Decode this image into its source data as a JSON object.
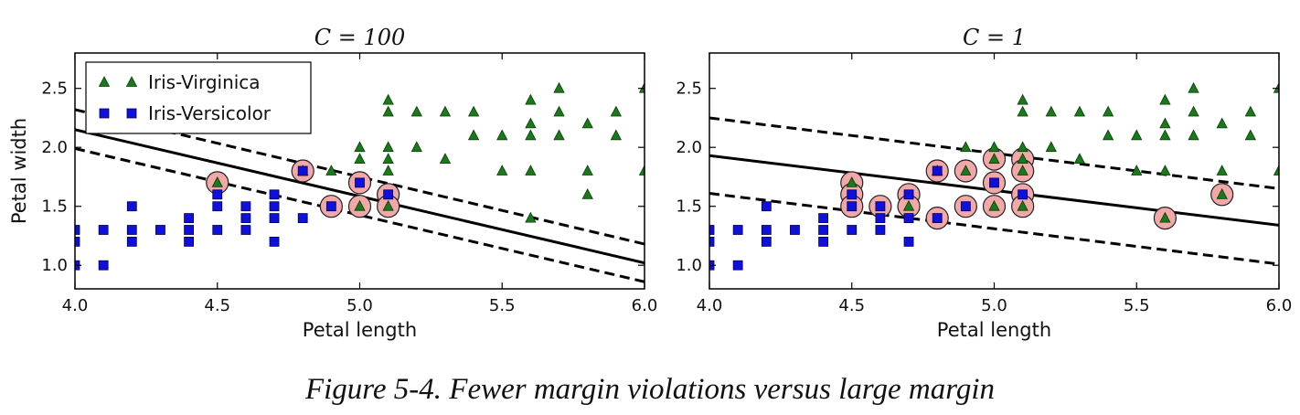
{
  "chart_data": [
    {
      "type": "scatter",
      "title": "C = 100",
      "xlabel": "Petal length",
      "ylabel": "Petal width",
      "xlim": [
        4.0,
        6.0
      ],
      "ylim": [
        0.8,
        2.8
      ],
      "xticks": [
        "4.0",
        "4.5",
        "5.0",
        "5.5",
        "6.0"
      ],
      "yticks": [
        "1.0",
        "1.5",
        "2.0",
        "2.5"
      ],
      "legend": {
        "placement": "top-left",
        "entries": [
          "Iris-Virginica",
          "Iris-Versicolor"
        ]
      },
      "series": [
        {
          "name": "Iris-Virginica",
          "marker": "triangle",
          "color": "#1a7a1a",
          "points": [
            [
              4.5,
              1.7
            ],
            [
              4.8,
              1.8
            ],
            [
              4.9,
              1.8
            ],
            [
              5.0,
              1.5
            ],
            [
              5.0,
              2.0
            ],
            [
              5.0,
              1.9
            ],
            [
              5.1,
              2.4
            ],
            [
              5.1,
              2.3
            ],
            [
              5.1,
              2.0
            ],
            [
              5.1,
              1.9
            ],
            [
              5.1,
              1.8
            ],
            [
              5.1,
              1.5
            ],
            [
              5.2,
              2.3
            ],
            [
              5.2,
              2.0
            ],
            [
              5.3,
              2.3
            ],
            [
              5.3,
              1.9
            ],
            [
              5.4,
              2.3
            ],
            [
              5.4,
              2.1
            ],
            [
              5.5,
              2.1
            ],
            [
              5.5,
              1.8
            ],
            [
              5.6,
              2.4
            ],
            [
              5.6,
              2.2
            ],
            [
              5.6,
              2.1
            ],
            [
              5.6,
              1.8
            ],
            [
              5.6,
              1.4
            ],
            [
              5.7,
              2.5
            ],
            [
              5.7,
              2.3
            ],
            [
              5.7,
              2.1
            ],
            [
              5.8,
              2.2
            ],
            [
              5.8,
              1.8
            ],
            [
              5.8,
              1.6
            ],
            [
              5.9,
              2.3
            ],
            [
              5.9,
              2.1
            ],
            [
              6.0,
              2.5
            ],
            [
              6.0,
              1.8
            ]
          ]
        },
        {
          "name": "Iris-Versicolor",
          "marker": "square",
          "color": "#1010dd",
          "points": [
            [
              4.0,
              1.3
            ],
            [
              4.0,
              1.2
            ],
            [
              4.0,
              1.0
            ],
            [
              4.1,
              1.3
            ],
            [
              4.1,
              1.0
            ],
            [
              4.2,
              1.5
            ],
            [
              4.2,
              1.3
            ],
            [
              4.2,
              1.2
            ],
            [
              4.3,
              1.3
            ],
            [
              4.4,
              1.4
            ],
            [
              4.4,
              1.3
            ],
            [
              4.4,
              1.2
            ],
            [
              4.5,
              1.6
            ],
            [
              4.5,
              1.5
            ],
            [
              4.5,
              1.3
            ],
            [
              4.6,
              1.5
            ],
            [
              4.6,
              1.4
            ],
            [
              4.6,
              1.3
            ],
            [
              4.7,
              1.6
            ],
            [
              4.7,
              1.5
            ],
            [
              4.7,
              1.4
            ],
            [
              4.7,
              1.2
            ],
            [
              4.8,
              1.8
            ],
            [
              4.8,
              1.4
            ],
            [
              4.9,
              1.5
            ],
            [
              5.0,
              1.7
            ],
            [
              5.1,
              1.6
            ]
          ]
        }
      ],
      "support_vectors": [
        [
          4.5,
          1.7
        ],
        [
          4.8,
          1.8
        ],
        [
          4.9,
          1.5
        ],
        [
          5.0,
          1.7
        ],
        [
          5.0,
          1.5
        ],
        [
          5.1,
          1.6
        ],
        [
          5.1,
          1.5
        ]
      ],
      "decision_boundary": {
        "style": "solid",
        "points": [
          [
            4.0,
            2.15
          ],
          [
            6.0,
            1.02
          ]
        ]
      },
      "margins": [
        {
          "style": "dashed",
          "points": [
            [
              4.0,
              2.32
            ],
            [
              6.0,
              1.18
            ]
          ]
        },
        {
          "style": "dashed",
          "points": [
            [
              4.0,
              1.99
            ],
            [
              6.0,
              0.86
            ]
          ]
        }
      ]
    },
    {
      "type": "scatter",
      "title": "C = 1",
      "xlabel": "Petal length",
      "ylabel": "",
      "xlim": [
        4.0,
        6.0
      ],
      "ylim": [
        0.8,
        2.8
      ],
      "xticks": [
        "4.0",
        "4.5",
        "5.0",
        "5.5",
        "6.0"
      ],
      "yticks": [
        "1.0",
        "1.5",
        "2.0",
        "2.5"
      ],
      "series": [
        {
          "name": "Iris-Virginica",
          "marker": "triangle",
          "color": "#1a7a1a",
          "points": [
            [
              4.5,
              1.7
            ],
            [
              4.7,
              1.5
            ],
            [
              4.8,
              1.8
            ],
            [
              4.9,
              1.8
            ],
            [
              4.9,
              2.0
            ],
            [
              5.0,
              1.5
            ],
            [
              5.0,
              2.0
            ],
            [
              5.0,
              1.9
            ],
            [
              5.1,
              2.4
            ],
            [
              5.1,
              2.3
            ],
            [
              5.1,
              2.0
            ],
            [
              5.1,
              1.9
            ],
            [
              5.1,
              1.8
            ],
            [
              5.1,
              1.5
            ],
            [
              5.2,
              2.3
            ],
            [
              5.2,
              2.0
            ],
            [
              5.3,
              2.3
            ],
            [
              5.3,
              1.9
            ],
            [
              5.4,
              2.3
            ],
            [
              5.4,
              2.1
            ],
            [
              5.5,
              2.1
            ],
            [
              5.5,
              1.8
            ],
            [
              5.6,
              2.4
            ],
            [
              5.6,
              2.2
            ],
            [
              5.6,
              2.1
            ],
            [
              5.6,
              1.8
            ],
            [
              5.6,
              1.4
            ],
            [
              5.7,
              2.5
            ],
            [
              5.7,
              2.3
            ],
            [
              5.7,
              2.1
            ],
            [
              5.8,
              2.2
            ],
            [
              5.8,
              1.8
            ],
            [
              5.8,
              1.6
            ],
            [
              5.9,
              2.3
            ],
            [
              5.9,
              2.1
            ],
            [
              6.0,
              2.5
            ],
            [
              6.0,
              1.8
            ]
          ]
        },
        {
          "name": "Iris-Versicolor",
          "marker": "square",
          "color": "#1010dd",
          "points": [
            [
              4.0,
              1.3
            ],
            [
              4.0,
              1.2
            ],
            [
              4.0,
              1.0
            ],
            [
              4.1,
              1.3
            ],
            [
              4.1,
              1.0
            ],
            [
              4.2,
              1.5
            ],
            [
              4.2,
              1.3
            ],
            [
              4.2,
              1.2
            ],
            [
              4.3,
              1.3
            ],
            [
              4.4,
              1.4
            ],
            [
              4.4,
              1.3
            ],
            [
              4.4,
              1.2
            ],
            [
              4.5,
              1.6
            ],
            [
              4.5,
              1.5
            ],
            [
              4.5,
              1.3
            ],
            [
              4.6,
              1.5
            ],
            [
              4.6,
              1.4
            ],
            [
              4.6,
              1.3
            ],
            [
              4.7,
              1.6
            ],
            [
              4.7,
              1.4
            ],
            [
              4.7,
              1.2
            ],
            [
              4.8,
              1.8
            ],
            [
              4.8,
              1.4
            ],
            [
              4.9,
              1.5
            ],
            [
              5.0,
              1.7
            ],
            [
              5.1,
              1.6
            ]
          ]
        }
      ],
      "support_vectors": [
        [
          4.5,
          1.7
        ],
        [
          4.5,
          1.6
        ],
        [
          4.5,
          1.5
        ],
        [
          4.6,
          1.5
        ],
        [
          4.7,
          1.6
        ],
        [
          4.7,
          1.5
        ],
        [
          4.8,
          1.8
        ],
        [
          4.8,
          1.4
        ],
        [
          4.9,
          1.8
        ],
        [
          4.9,
          1.5
        ],
        [
          5.0,
          1.9
        ],
        [
          5.0,
          1.7
        ],
        [
          5.0,
          1.5
        ],
        [
          5.1,
          1.9
        ],
        [
          5.1,
          1.8
        ],
        [
          5.1,
          1.6
        ],
        [
          5.1,
          1.5
        ],
        [
          5.6,
          1.4
        ],
        [
          5.8,
          1.6
        ]
      ],
      "decision_boundary": {
        "style": "solid",
        "points": [
          [
            4.0,
            1.93
          ],
          [
            6.0,
            1.34
          ]
        ]
      },
      "margins": [
        {
          "style": "dashed",
          "points": [
            [
              4.0,
              2.25
            ],
            [
              6.0,
              1.65
            ]
          ]
        },
        {
          "style": "dashed",
          "points": [
            [
              4.0,
              1.61
            ],
            [
              6.0,
              1.01
            ]
          ]
        }
      ]
    }
  ],
  "caption": "Figure 5-4. Fewer margin violations versus large margin"
}
